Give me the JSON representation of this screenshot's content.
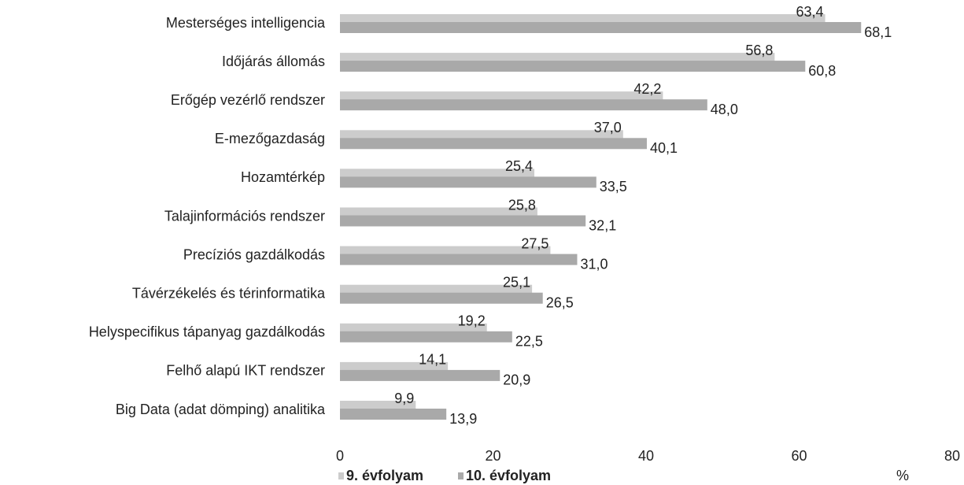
{
  "chart_data": {
    "type": "bar",
    "orientation": "horizontal",
    "categories": [
      "Mesterséges intelligencia",
      "Időjárás állomás",
      "Erőgép vezérlő rendszer",
      "E-mezőgazdaság",
      "Hozamtérkép",
      "Talajinformációs rendszer",
      "Precíziós gazdálkodás",
      "Távérzékelés és térinformatika",
      "Helyspecifikus tápanyag gazdálkodás",
      "Felhő alapú IKT rendszer",
      "Big Data (adat dömping) analitika"
    ],
    "series": [
      {
        "name": "9. évfolyam",
        "color": "#cccccc",
        "values": [
          63.4,
          56.8,
          42.2,
          37.0,
          25.4,
          25.8,
          27.5,
          25.1,
          19.2,
          14.1,
          9.9
        ],
        "value_labels": [
          "63,4",
          "56,8",
          "42,2",
          "37,0",
          "25,4",
          "25,8",
          "27,5",
          "25,1",
          "19,2",
          "14,1",
          "9,9"
        ]
      },
      {
        "name": "10. évfolyam",
        "color": "#a9a9a9",
        "values": [
          68.1,
          60.8,
          48.0,
          40.1,
          33.5,
          32.1,
          31.0,
          26.5,
          22.5,
          20.9,
          13.9
        ],
        "value_labels": [
          "68,1",
          "60,8",
          "48,0",
          "40,1",
          "33,5",
          "32,1",
          "31,0",
          "26,5",
          "22,5",
          "20,9",
          "13,9"
        ]
      }
    ],
    "xlim": [
      0,
      80
    ],
    "xticks": [
      0,
      20,
      40,
      60,
      80
    ],
    "xlabel": "%"
  }
}
